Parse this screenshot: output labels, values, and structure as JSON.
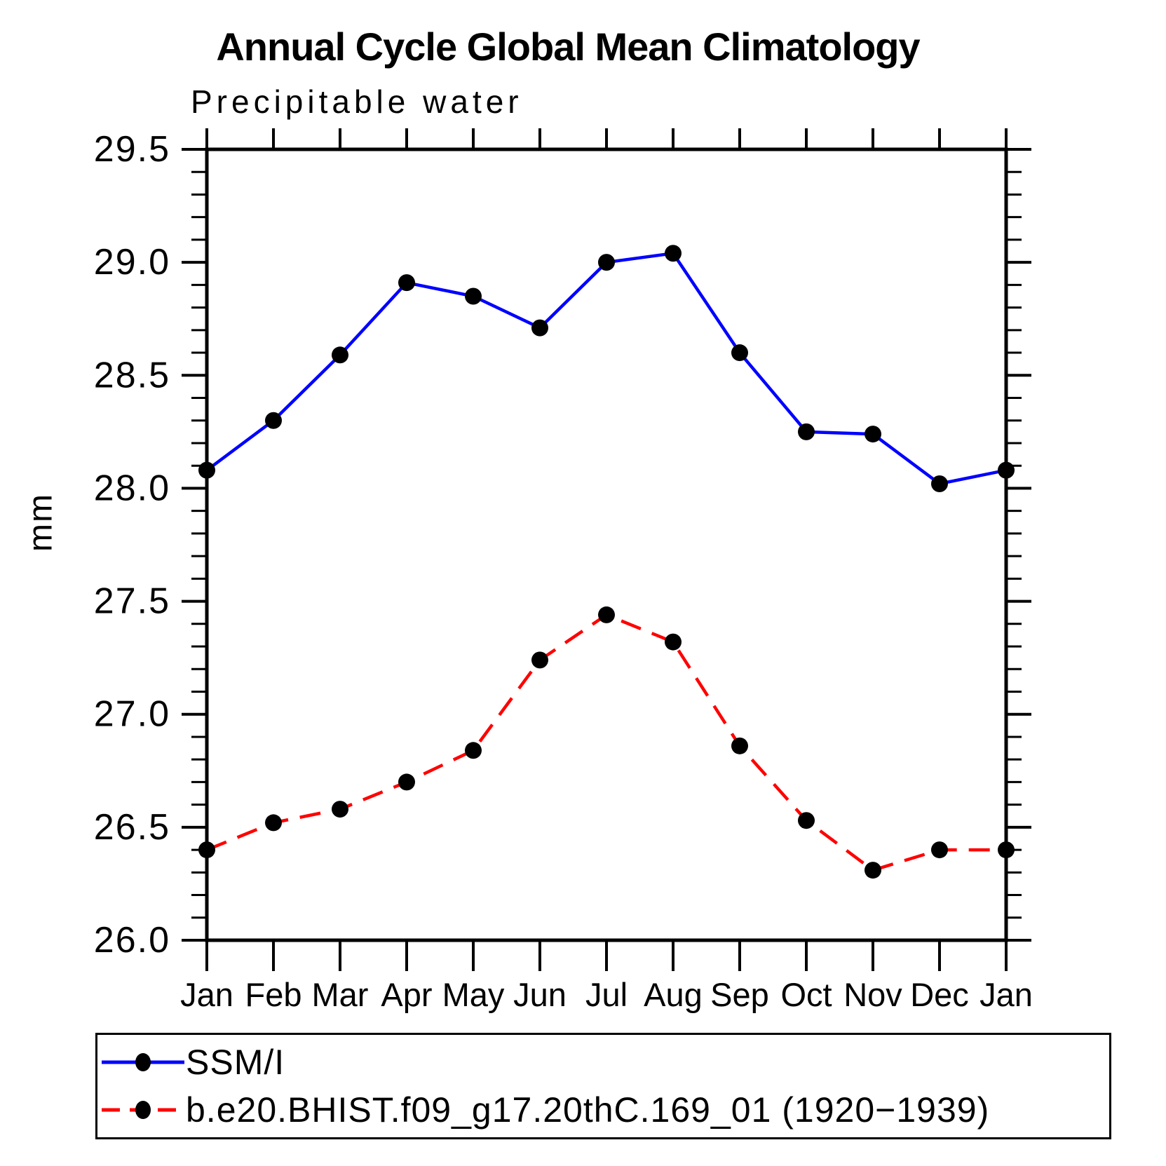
{
  "title": "Annual Cycle Global Mean Climatology",
  "subtitle": "Precipitable water",
  "ylabel": "mm",
  "chart_data": {
    "type": "line",
    "x_categories": [
      "Jan",
      "Feb",
      "Mar",
      "Apr",
      "May",
      "Jun",
      "Jul",
      "Aug",
      "Sep",
      "Oct",
      "Nov",
      "Dec",
      "Jan"
    ],
    "series": [
      {
        "name": "SSM/I",
        "color": "#0000ff",
        "line_style": "solid",
        "marker": "filled-circle",
        "marker_color": "#000000",
        "values": [
          28.08,
          28.3,
          28.59,
          28.91,
          28.85,
          28.71,
          29.0,
          29.04,
          28.6,
          28.25,
          28.24,
          28.02,
          28.08
        ]
      },
      {
        "name": "b.e20.BHIST.f09_g17.20thC.169_01 (1920−1939)",
        "color": "#ff0000",
        "line_style": "dashed",
        "marker": "filled-circle",
        "marker_color": "#000000",
        "values": [
          26.4,
          26.52,
          26.58,
          26.7,
          26.84,
          27.24,
          27.44,
          27.32,
          26.86,
          26.53,
          26.31,
          26.4,
          26.4
        ]
      }
    ],
    "ylim": [
      26.0,
      29.5
    ],
    "ytick_labels": [
      "26.0",
      "26.5",
      "27.0",
      "27.5",
      "28.0",
      "28.5",
      "29.0",
      "29.5"
    ],
    "ymajor_step": 0.5,
    "yminor_step": 0.1,
    "grid": false,
    "legend_position": "bottom-left-box"
  }
}
